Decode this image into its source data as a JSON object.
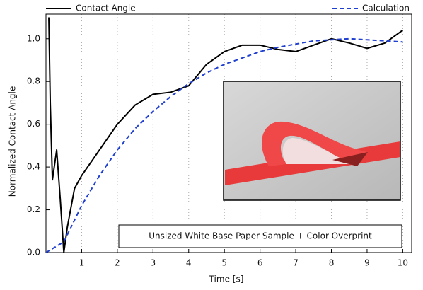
{
  "chart_data": {
    "type": "line",
    "xlabel": "Time [s]",
    "ylabel": "Normalized Contact Angle",
    "annotation": "Unsized White Base Paper Sample + Color Overprint",
    "xlim": [
      0,
      10.25
    ],
    "ylim": [
      0,
      1.115
    ],
    "xticks": [
      1,
      2,
      3,
      4,
      5,
      6,
      7,
      8,
      9,
      10
    ],
    "yticks": [
      {
        "value": 0,
        "label": "0.0"
      },
      0.2,
      0.4,
      0.6,
      0.8,
      {
        "value": 1,
        "label": "1.0"
      }
    ],
    "grid": true,
    "series": [
      {
        "name": "Contact Angle",
        "color": "#000000",
        "dash": false,
        "x": [
          0.08,
          0.12,
          0.18,
          0.3,
          0.4,
          0.5,
          0.6,
          0.8,
          1.0,
          1.5,
          2,
          2.5,
          3,
          3.5,
          4,
          4.5,
          5,
          5.5,
          6,
          6.5,
          7,
          7.5,
          8,
          8.5,
          9,
          9.5,
          10
        ],
        "y": [
          1.1,
          0.7,
          0.34,
          0.48,
          0.25,
          0.0,
          0.12,
          0.3,
          0.36,
          0.48,
          0.6,
          0.69,
          0.74,
          0.75,
          0.78,
          0.88,
          0.94,
          0.97,
          0.97,
          0.95,
          0.94,
          0.97,
          1.0,
          0.98,
          0.955,
          0.98,
          1.04
        ]
      },
      {
        "name": "Calculation",
        "color": "#1f3fd0",
        "dash": true,
        "x": [
          0,
          0.5,
          1,
          1.5,
          2,
          2.5,
          3,
          3.5,
          4,
          4.5,
          5,
          5.5,
          6,
          6.5,
          7,
          7.5,
          8,
          8.5,
          9,
          9.5,
          10
        ],
        "y": [
          0,
          0.05,
          0.22,
          0.36,
          0.48,
          0.58,
          0.66,
          0.73,
          0.79,
          0.84,
          0.88,
          0.91,
          0.94,
          0.96,
          0.975,
          0.99,
          0.995,
          1.0,
          0.995,
          0.99,
          0.985
        ]
      }
    ]
  }
}
